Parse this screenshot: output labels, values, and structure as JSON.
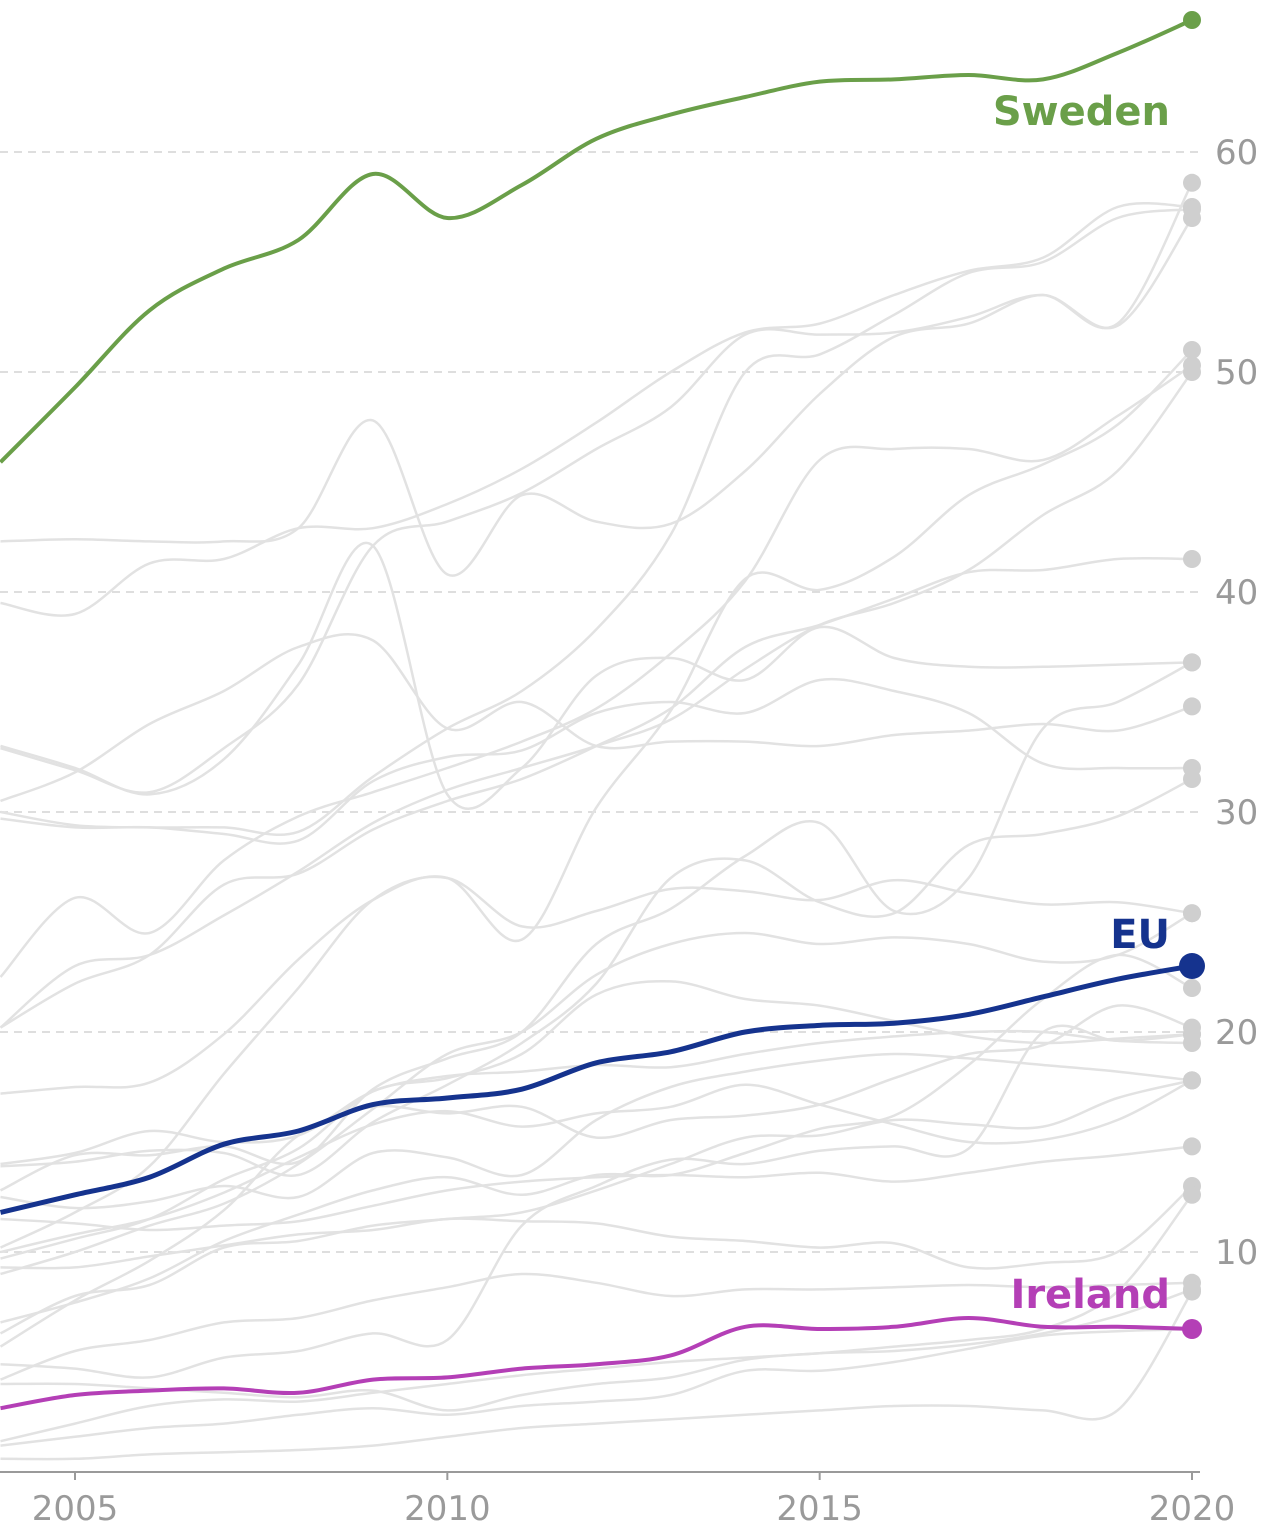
{
  "chart_data": {
    "type": "line",
    "xlim": [
      2004,
      2020
    ],
    "ylim": [
      0,
      66
    ],
    "x_ticks": [
      "2005",
      "2010",
      "2015",
      "2020"
    ],
    "y_ticks": [
      "10",
      "20",
      "30",
      "40",
      "50",
      "60"
    ],
    "grid": "horizontal dashed",
    "x": [
      2004,
      2005,
      2006,
      2007,
      2008,
      2009,
      2010,
      2011,
      2012,
      2013,
      2014,
      2015,
      2016,
      2017,
      2018,
      2019,
      2020
    ],
    "highlighted": [
      {
        "name": "Sweden",
        "color": "#6a9f49",
        "values": [
          45.9,
          49.3,
          52.8,
          54.7,
          56.0,
          59.0,
          57.0,
          58.5,
          60.6,
          61.7,
          62.5,
          63.2,
          63.3,
          63.5,
          63.3,
          64.5,
          66.0
        ]
      },
      {
        "name": "EU",
        "color": "#15338e",
        "values": [
          11.8,
          12.6,
          13.4,
          14.9,
          15.5,
          16.7,
          17.0,
          17.4,
          18.6,
          19.1,
          20.0,
          20.3,
          20.4,
          20.8,
          21.6,
          22.4,
          23.0
        ]
      },
      {
        "name": "Ireland",
        "color": "#b43fb6",
        "values": [
          2.9,
          3.5,
          3.7,
          3.8,
          3.6,
          4.2,
          4.3,
          4.7,
          4.9,
          5.3,
          6.6,
          6.5,
          6.6,
          7.0,
          6.6,
          6.6,
          6.5
        ]
      }
    ],
    "other_series": [
      {
        "values": [
          39.5,
          39.0,
          41.3,
          41.5,
          42.9,
          42.9,
          44.0,
          45.6,
          47.7,
          50.0,
          51.8,
          52.2,
          53.5,
          54.6,
          55.2,
          57.5,
          57.5
        ]
      },
      {
        "values": [
          42.3,
          42.4,
          42.3,
          42.3,
          42.9,
          47.8,
          40.8,
          44.4,
          43.2,
          43.1,
          45.5,
          49.0,
          51.6,
          52.2,
          53.5,
          52.1,
          57.0
        ]
      },
      {
        "values": [
          30.0,
          29.4,
          29.3,
          29.3,
          29.1,
          31.6,
          33.8,
          35.5,
          38.3,
          42.6,
          50.0,
          50.8,
          52.6,
          54.5,
          55.0,
          57.0,
          57.4
        ]
      },
      {
        "values": [
          32.9,
          31.9,
          30.9,
          32.9,
          35.8,
          42.1,
          43.2,
          44.5,
          46.5,
          48.4,
          51.7,
          51.7,
          51.8,
          52.5,
          53.5,
          52.2,
          58.6
        ]
      },
      {
        "values": [
          17.2,
          17.5,
          17.7,
          19.9,
          23.3,
          26.0,
          27.0,
          24.2,
          30.2,
          34.6,
          40.6,
          40.1,
          41.6,
          44.4,
          45.8,
          47.6,
          51.0
        ]
      },
      {
        "values": [
          22.5,
          26.1,
          24.5,
          27.8,
          29.8,
          30.9,
          32.0,
          33.2,
          34.7,
          37.2,
          40.5,
          46.0,
          46.5,
          46.5,
          46.0,
          48.0,
          50.3
        ]
      },
      {
        "values": [
          20.2,
          22.2,
          23.5,
          26.7,
          27.2,
          29.2,
          30.5,
          31.5,
          33.0,
          34.7,
          37.5,
          38.5,
          39.7,
          40.9,
          41.0,
          41.5,
          41.5
        ]
      },
      {
        "values": [
          30.5,
          31.8,
          34.0,
          35.5,
          37.5,
          37.8,
          33.8,
          35.0,
          33.0,
          33.2,
          33.2,
          33.0,
          33.5,
          33.7,
          34.0,
          33.7,
          34.8
        ]
      },
      {
        "values": [
          33.0,
          32.0,
          30.8,
          32.4,
          36.7,
          42.1,
          30.8,
          32.0,
          36.2,
          37.0,
          36.0,
          38.4,
          37.0,
          36.6,
          36.6,
          36.7,
          36.8
        ]
      },
      {
        "values": [
          29.7,
          29.3,
          29.3,
          29.0,
          28.7,
          31.4,
          32.5,
          32.8,
          34.5,
          35.0,
          34.5,
          36.0,
          35.5,
          34.5,
          32.2,
          32.0,
          32.0
        ]
      },
      {
        "values": [
          20.2,
          23.0,
          23.5,
          25.3,
          27.3,
          29.5,
          31.0,
          32.0,
          33.0,
          34.2,
          36.5,
          38.5,
          39.5,
          41.0,
          43.5,
          45.5,
          50.0
        ]
      },
      {
        "values": [
          12.8,
          14.4,
          14.4,
          14.8,
          14.1,
          17.4,
          18.8,
          20.0,
          24.0,
          25.6,
          28.0,
          29.5,
          25.5,
          27.0,
          33.8,
          35.0,
          36.8
        ]
      },
      {
        "values": [
          10.2,
          11.8,
          13.9,
          18.1,
          22.0,
          26.0,
          27.0,
          24.8,
          25.5,
          26.5,
          26.4,
          26.0,
          26.9,
          26.3,
          25.8,
          25.9,
          25.4
        ]
      },
      {
        "values": [
          13.9,
          14.1,
          14.6,
          14.5,
          13.5,
          15.9,
          17.6,
          19.5,
          22.2,
          27.0,
          27.8,
          25.9,
          25.4,
          28.5,
          29.0,
          29.8,
          31.5
        ]
      },
      {
        "values": [
          9.0,
          10.0,
          11.2,
          12.2,
          14.0,
          16.5,
          19.0,
          20.0,
          22.6,
          24.0,
          24.5,
          24.0,
          24.3,
          24.0,
          23.2,
          23.5,
          25.4
        ]
      },
      {
        "values": [
          9.7,
          10.6,
          11.5,
          13.3,
          14.7,
          17.3,
          17.9,
          19.0,
          21.7,
          22.3,
          21.5,
          21.2,
          20.5,
          19.8,
          19.5,
          19.7,
          19.9
        ]
      },
      {
        "values": [
          14.0,
          14.5,
          15.5,
          15.0,
          15.3,
          17.3,
          18.0,
          18.2,
          18.5,
          18.4,
          19.0,
          19.5,
          19.8,
          20.0,
          20.0,
          19.6,
          19.5
        ]
      },
      {
        "values": [
          12.5,
          12.0,
          12.3,
          13.0,
          12.5,
          14.5,
          14.3,
          13.5,
          16.0,
          17.5,
          18.2,
          18.7,
          19.0,
          18.8,
          18.5,
          18.2,
          17.8
        ]
      },
      {
        "values": [
          10.0,
          10.8,
          11.5,
          12.7,
          14.3,
          15.8,
          16.4,
          15.7,
          16.3,
          16.6,
          17.6,
          16.7,
          15.8,
          15.0,
          15.1,
          16.0,
          17.8
        ]
      },
      {
        "values": [
          11.5,
          11.3,
          11.0,
          11.2,
          11.4,
          12.1,
          12.8,
          13.2,
          13.4,
          13.5,
          13.4,
          13.6,
          13.2,
          13.6,
          14.1,
          14.4,
          14.8
        ]
      },
      {
        "values": [
          4.9,
          4.7,
          4.3,
          5.2,
          5.5,
          6.3,
          6.0,
          11.2,
          13.0,
          14.2,
          14.0,
          14.6,
          14.8,
          14.7,
          20.0,
          19.6,
          19.9
        ]
      },
      {
        "values": [
          6.3,
          8.0,
          8.5,
          10.2,
          10.5,
          11.2,
          11.5,
          11.8,
          12.8,
          14.0,
          15.2,
          15.3,
          16.0,
          15.8,
          15.7,
          17.0,
          17.8
        ]
      },
      {
        "values": [
          6.8,
          7.7,
          8.8,
          10.5,
          11.7,
          12.8,
          13.4,
          12.6,
          13.5,
          13.5,
          14.5,
          15.6,
          16.2,
          18.5,
          21.5,
          23.5,
          22.0
        ]
      },
      {
        "values": [
          5.7,
          7.8,
          9.6,
          11.9,
          15.3,
          16.6,
          16.3,
          16.6,
          15.2,
          16.0,
          16.2,
          16.7,
          17.9,
          19.0,
          19.4,
          21.2,
          20.2
        ]
      },
      {
        "values": [
          9.3,
          9.3,
          9.8,
          10.3,
          10.8,
          11.0,
          11.5,
          11.4,
          11.3,
          10.7,
          10.5,
          10.2,
          10.4,
          9.3,
          9.5,
          10.0,
          13.0
        ]
      },
      {
        "values": [
          4.2,
          5.5,
          6.0,
          6.8,
          7.0,
          7.8,
          8.4,
          9.0,
          8.6,
          8.0,
          8.3,
          8.3,
          8.4,
          8.5,
          8.4,
          8.5,
          8.6
        ]
      },
      {
        "values": [
          1.4,
          2.2,
          3.0,
          3.3,
          3.2,
          3.6,
          4.0,
          4.4,
          4.7,
          5.0,
          5.2,
          5.4,
          5.7,
          6.0,
          6.5,
          8.2,
          12.6
        ]
      },
      {
        "values": [
          4.0,
          4.0,
          3.8,
          3.6,
          3.4,
          3.7,
          2.8,
          3.5,
          4.0,
          4.3,
          5.1,
          5.4,
          5.5,
          5.8,
          6.3,
          7.1,
          8.3
        ]
      },
      {
        "values": [
          0.6,
          0.6,
          0.8,
          0.9,
          1.0,
          1.2,
          1.6,
          2.0,
          2.2,
          2.4,
          2.6,
          2.8,
          3.0,
          3.0,
          2.8,
          2.8,
          8.2
        ]
      },
      {
        "values": [
          1.2,
          1.6,
          2.0,
          2.2,
          2.6,
          2.9,
          2.6,
          3.0,
          3.2,
          3.5,
          4.6,
          4.6,
          5.0,
          5.6,
          6.2,
          6.4,
          6.5
        ]
      }
    ]
  }
}
